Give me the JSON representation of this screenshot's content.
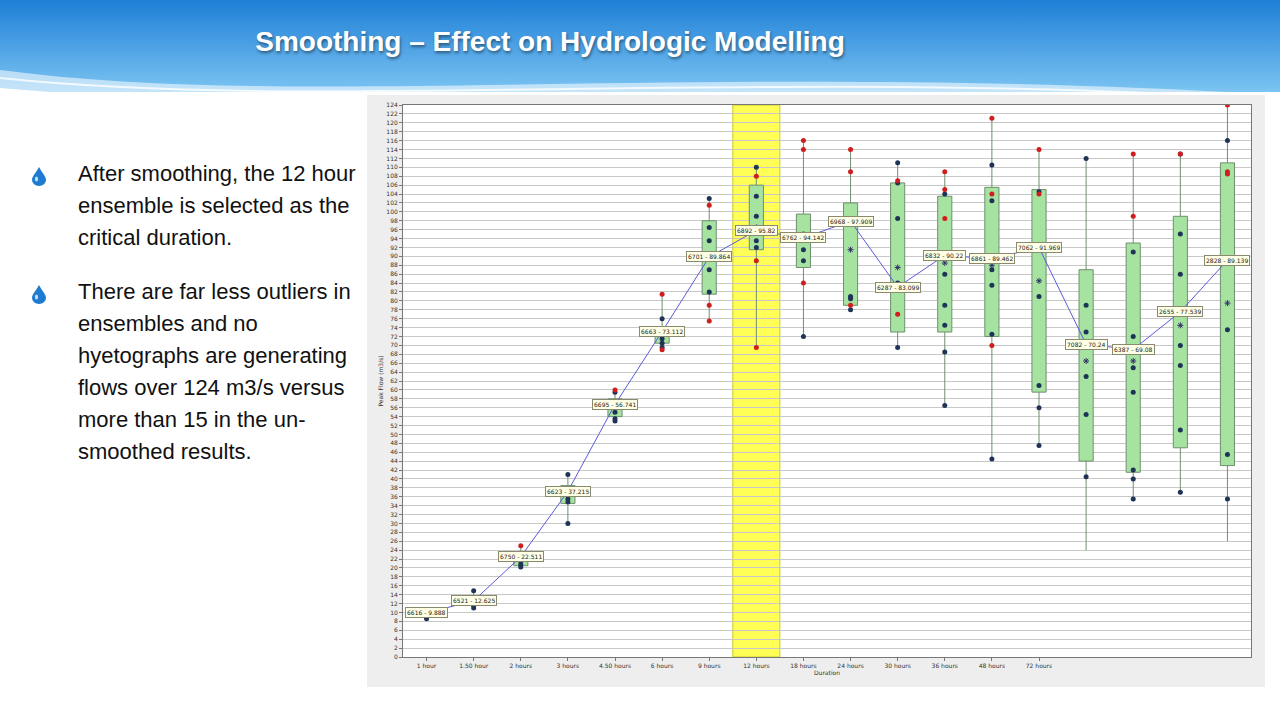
{
  "slide": {
    "title": "Smoothing – Effect on Hydrologic Modelling",
    "bullets": [
      "After smoothing, the 12 hour ensemble is selected as the critical duration.",
      "There are far less outliers in ensembles and no hyetographs are generating flows over 124 m3/s versus more than 15 in the un-smoothed results."
    ]
  },
  "chart_data": {
    "type": "box",
    "x_label": "Duration",
    "y_label": "Peak Flow (m3/s)",
    "categories": [
      "1 hour",
      "1.50 hour",
      "2 hours",
      "3 hours",
      "4.50 hours",
      "6 hours",
      "9 hours",
      "12 hours",
      "18 hours",
      "24 hours",
      "30 hours",
      "36 hours",
      "48 hours",
      "72 hours",
      null,
      null,
      null,
      null
    ],
    "highlight": "12 hours",
    "min": [
      8.5,
      10.8,
      20,
      30,
      53,
      69,
      75,
      69.5,
      72,
      78,
      69,
      56.5,
      44.5,
      47.5,
      24,
      35,
      36.5,
      26
    ],
    "q1": [
      9.1,
      12,
      20.5,
      34.5,
      54,
      70.5,
      81.5,
      91.5,
      87.5,
      79,
      73,
      73,
      72,
      59.5,
      44,
      41.5,
      47,
      43
    ],
    "median": [
      9.888,
      12.625,
      22.511,
      37.215,
      56.741,
      73.112,
      89.864,
      95.82,
      94.142,
      97.909,
      83.099,
      90.22,
      89.462,
      91.969,
      70.24,
      69.08,
      77.539,
      89.139
    ],
    "q3": [
      10.4,
      13.5,
      23.5,
      38.5,
      58,
      74,
      98,
      106,
      99.5,
      102,
      106.5,
      103.5,
      105.5,
      105,
      87,
      93,
      99,
      111
    ],
    "max": [
      10.5,
      14.9,
      25,
      41,
      60,
      81.5,
      103,
      110,
      116,
      114,
      111,
      109,
      121,
      114,
      112,
      113,
      113,
      124
    ],
    "mean": [
      9.6,
      12.6,
      22.3,
      36.2,
      56.4,
      72.5,
      89.5,
      96.5,
      94.5,
      91.5,
      87.5,
      88.5,
      88,
      84.5,
      66.5,
      66.5,
      74.5,
      79.5
    ],
    "value_labels": [
      "6616 - 9.888",
      "6521 - 12.625",
      "6750 - 22.511",
      "6623 - 37.215",
      "6695 - 56.741",
      "6663 - 73.112",
      "6701 - 89.864",
      "6892 - 95.82",
      "6762 - 94.142",
      "6968 - 97.909",
      "6287 - 83.099",
      "6832 - 90.22",
      "6861 - 89.462",
      "7062 - 91.969",
      "7082 - 70.24",
      "6387 - 69.08",
      "2655 - 77.539",
      "2828 - 89.139"
    ],
    "points": [
      [
        8.6,
        9.0,
        9.6,
        10.2
      ],
      [
        11,
        11.5,
        12.5,
        13,
        14.9
      ],
      [
        20.2,
        20.8,
        21.5,
        22.5,
        23
      ],
      [
        30,
        34.8,
        35.5,
        36.5,
        37.5,
        41
      ],
      [
        53,
        53.5,
        55,
        57,
        59.5
      ],
      [
        69.5,
        70.5,
        71.5,
        72.5,
        76
      ],
      [
        82,
        87,
        90,
        93.5,
        96.5,
        103
      ],
      [
        92,
        93.5,
        96,
        99,
        103.5,
        110
      ],
      [
        72,
        89,
        91.5,
        94,
        95
      ],
      [
        78,
        80.5,
        81,
        98
      ],
      [
        69.5,
        82.5,
        84,
        98.5,
        106.5,
        111
      ],
      [
        56.5,
        68.5,
        74.5,
        79,
        86,
        90,
        104
      ],
      [
        44.5,
        72.5,
        83.5,
        87,
        102.5,
        110.5
      ],
      [
        47.5,
        56,
        61,
        81,
        92,
        104.5
      ],
      [
        40.5,
        54.5,
        63,
        70,
        73,
        79,
        112
      ],
      [
        35.5,
        40,
        42,
        59.5,
        65,
        72,
        91
      ],
      [
        37,
        51,
        65.5,
        70,
        86,
        95,
        113
      ],
      [
        35.5,
        45.5,
        73.5,
        116
      ]
    ],
    "red_points": [
      [],
      [],
      [
        25
      ],
      [],
      [
        60
      ],
      [
        69,
        81.5
      ],
      [
        75.5,
        79,
        101.5
      ],
      [
        69.5,
        89,
        108
      ],
      [
        84,
        114,
        116
      ],
      [
        79,
        109,
        114
      ],
      [
        77,
        107
      ],
      [
        98.5,
        105,
        109
      ],
      [
        70,
        104,
        121
      ],
      [
        104,
        114
      ],
      [],
      [
        99,
        113
      ],
      [
        113
      ],
      [
        89.5,
        108.5,
        109,
        124
      ]
    ],
    "color": "#a6e3a1",
    "data_labels": true,
    "grid": true,
    "ylim": [
      0,
      124
    ],
    "yticks": [
      0,
      2,
      4,
      6,
      8,
      10,
      12,
      14,
      16,
      18,
      20,
      22,
      24,
      26,
      28,
      30,
      32,
      34,
      36,
      38,
      40,
      42,
      44,
      46,
      48,
      50,
      52,
      54,
      56,
      58,
      60,
      62,
      64,
      66,
      68,
      70,
      72,
      74,
      76,
      78,
      80,
      82,
      84,
      86,
      88,
      90,
      92,
      94,
      96,
      98,
      100,
      102,
      104,
      106,
      108,
      110,
      112,
      114,
      116,
      118,
      120,
      122,
      124
    ]
  }
}
